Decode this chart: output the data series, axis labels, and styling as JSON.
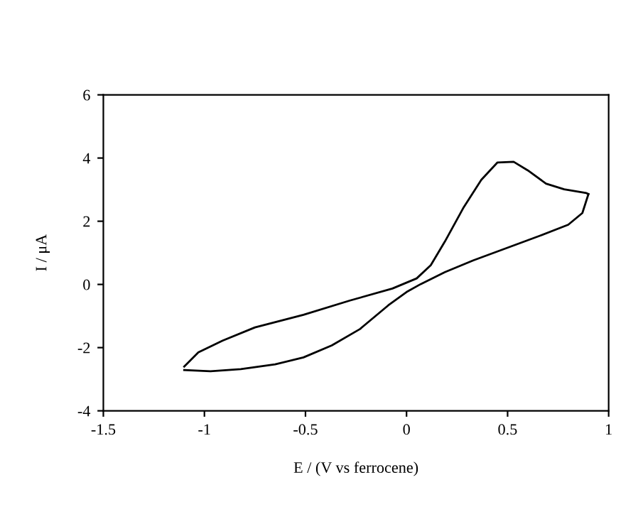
{
  "chart_data": {
    "type": "line",
    "xlabel": "E / (V vs ferrocene)",
    "ylabel": "I / μA",
    "series": [
      {
        "color": "#000000",
        "x": [
          -1.1,
          -1.03,
          -0.91,
          -0.75,
          -0.51,
          -0.28,
          -0.07,
          0.05,
          0.12,
          0.19,
          0.28,
          0.37,
          0.45,
          0.53,
          0.6,
          0.69,
          0.78,
          0.89,
          0.9
        ],
        "values": [
          -2.6,
          -2.15,
          -1.78,
          -1.36,
          -0.96,
          -0.51,
          -0.13,
          0.19,
          0.61,
          1.36,
          2.41,
          3.31,
          3.86,
          3.88,
          3.61,
          3.19,
          3.01,
          2.89,
          2.86
        ]
      },
      {
        "color": "#000000",
        "x": [
          -1.1,
          -0.97,
          -0.82,
          -0.65,
          -0.51,
          -0.37,
          -0.23,
          -0.09,
          0.0,
          0.07,
          0.19,
          0.33,
          0.52,
          0.66,
          0.8,
          0.87,
          0.9
        ],
        "values": [
          -2.71,
          -2.75,
          -2.68,
          -2.53,
          -2.31,
          -1.93,
          -1.41,
          -0.66,
          -0.24,
          0.01,
          0.39,
          0.76,
          1.21,
          1.54,
          1.89,
          2.26,
          2.86
        ]
      }
    ],
    "xlim": [
      -1.5,
      1
    ],
    "xticks": [
      -1.5,
      -1,
      -0.5,
      0,
      0.5,
      1
    ],
    "ylim": [
      -4,
      6
    ],
    "yticks": [
      -4,
      -2,
      0,
      2,
      4,
      6
    ],
    "grid": false,
    "marker": "none",
    "line_style": "solid"
  }
}
